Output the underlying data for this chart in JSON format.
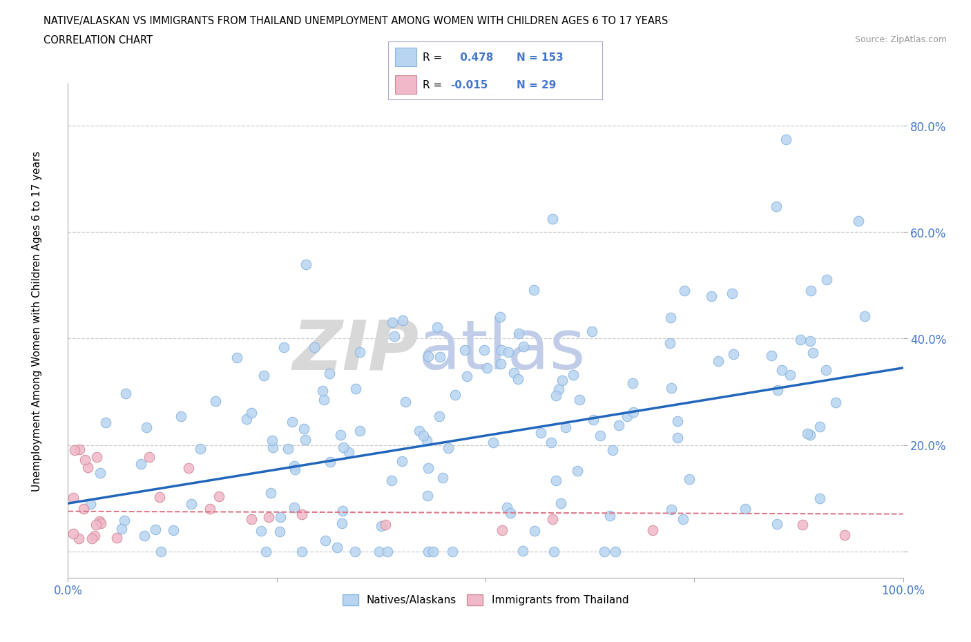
{
  "title_line1": "NATIVE/ALASKAN VS IMMIGRANTS FROM THAILAND UNEMPLOYMENT AMONG WOMEN WITH CHILDREN AGES 6 TO 17 YEARS",
  "title_line2": "CORRELATION CHART",
  "source_text": "Source: ZipAtlas.com",
  "ylabel": "Unemployment Among Women with Children Ages 6 to 17 years",
  "xlim": [
    0.0,
    1.0
  ],
  "ylim": [
    -0.05,
    0.88
  ],
  "ytick_positions": [
    0.0,
    0.2,
    0.4,
    0.6,
    0.8
  ],
  "ytick_labels": [
    "",
    "20.0%",
    "40.0%",
    "60.0%",
    "80.0%"
  ],
  "native_color": "#b8d4f0",
  "native_color_edge": "#88b4e0",
  "immigrant_color": "#f0b8c8",
  "immigrant_color_edge": "#d08898",
  "line_native_color": "#2266bb",
  "line_immigrant_color": "#dd7788",
  "R_native": 0.478,
  "N_native": 153,
  "R_immigrant": -0.015,
  "N_immigrant": 29,
  "background_color": "#ffffff",
  "grid_color": "#cccccc",
  "tick_color": "#4477cc",
  "legend_border_color": "#aaaacc"
}
